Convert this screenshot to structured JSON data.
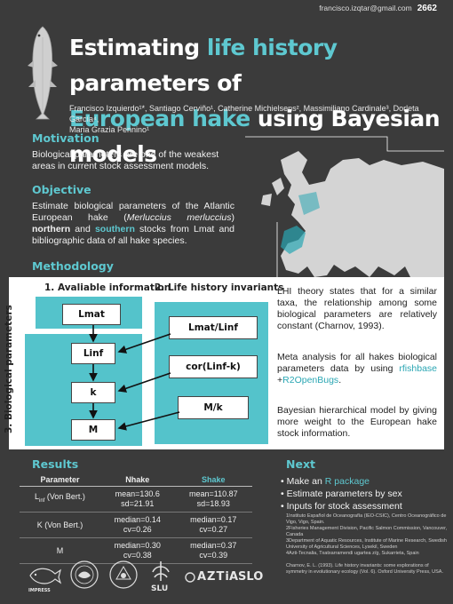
{
  "header": {
    "email": "francisco.izqtar@gmail.com",
    "poster_number": "2662"
  },
  "title": {
    "line1_a": "Estimating ",
    "line1_accent": "life history",
    "line1_b": " parameters of",
    "line2_accent": "European hake",
    "line2_b": " using Bayesian models"
  },
  "authors": [
    "Francisco Izquierdo¹*, Santiago Cerviño¹, Catherine Michielsens², Massimiliano Cardinale³, Dorleta García⁴,",
    "Maria Grazia Pennino¹"
  ],
  "motivation": {
    "heading": "Motivation",
    "text": "Biological parameters are one of the weakest areas in current stock assessment models."
  },
  "objective": {
    "heading": "Objective",
    "t1": "Estimate biological parameters of the Atlantic European hake (",
    "species": "Merluccius merluccius",
    "t2": ") ",
    "northern": "northern",
    "t3": " and ",
    "southern": "southern",
    "t4": " stocks from Lmat and bibliographic data of all hake species."
  },
  "methodology": {
    "heading": "Methodology",
    "col1_title": "1. Avaliable information",
    "col2_title": "2. Life history invariants",
    "side_label": "3. Biological parameters",
    "boxes_left": [
      "Lmat",
      "Linf",
      "k",
      "M"
    ],
    "boxes_right": [
      "Lmat/Linf",
      "cor(Linf-k)",
      "M/k"
    ],
    "p1": "LHI theory states that for a similar taxa, the relationship among some biological parameters are relatively constant (Charnov, 1993).",
    "p2_a": "Meta analysis for all hakes biological parameters data by using ",
    "p2_link1": "rfishbase",
    "p2_plus": " +",
    "p2_link2": "R2OpenBugs",
    "p2_end": ".",
    "p3": "Bayesian hierarchical model by giving more weight to the European hake stock information."
  },
  "results": {
    "heading": "Results",
    "columns": [
      "Parameter",
      "Nhake",
      "Shake"
    ],
    "rows": [
      {
        "param": "Linf (Von Bert.)",
        "n1": "mean=130.6",
        "n2": "sd=21.91",
        "s1": "mean=110.87",
        "s2": "sd=18.93"
      },
      {
        "param": "K (Von Bert.)",
        "n1": "median=0.14",
        "n2": "cv=0.26",
        "s1": "median=0.17",
        "s2": "cv=0.27"
      },
      {
        "param": "M",
        "n1": "median=0.30",
        "n2": "cv=0.38",
        "s1": "median=0.37",
        "s2": "cv=0.39"
      }
    ]
  },
  "next": {
    "heading": "Next",
    "item1_a": "Make an ",
    "item1_link": "R package",
    "item2": "Estimate parameters by sex",
    "item3": "Inputs for stock assessment"
  },
  "affiliations": [
    "1Instituto Español de Oceanografía (IEO-CSIC), Centro Oceanográfico de Vigo, Vigo, Spain.",
    "2Fisheries Management Division, Pacific Salmon Commission, Vancouver, Canada",
    "3Department of Aquatic Resources, Institute of Marine Research, Swedish University of Agricultural Sciences, Lysekil, Sweden",
    "4Azti-Tecnalia, Txatxarramendi ugartea z/g, Sukarrieta, Spain"
  ],
  "reference": "Charnov, E. L. (1993). Life history invariants: some explorations of symmetry in evolutionary ecology (Vol. 6). Oxford University Press, USA.",
  "logos": {
    "impress": "IMPRESS",
    "slu": "SLU",
    "azti": "AZTi",
    "aslo": "ASLO"
  },
  "colors": {
    "accent": "#5ec8d0",
    "background": "#3b3b3b",
    "box": "#54c3cb"
  }
}
